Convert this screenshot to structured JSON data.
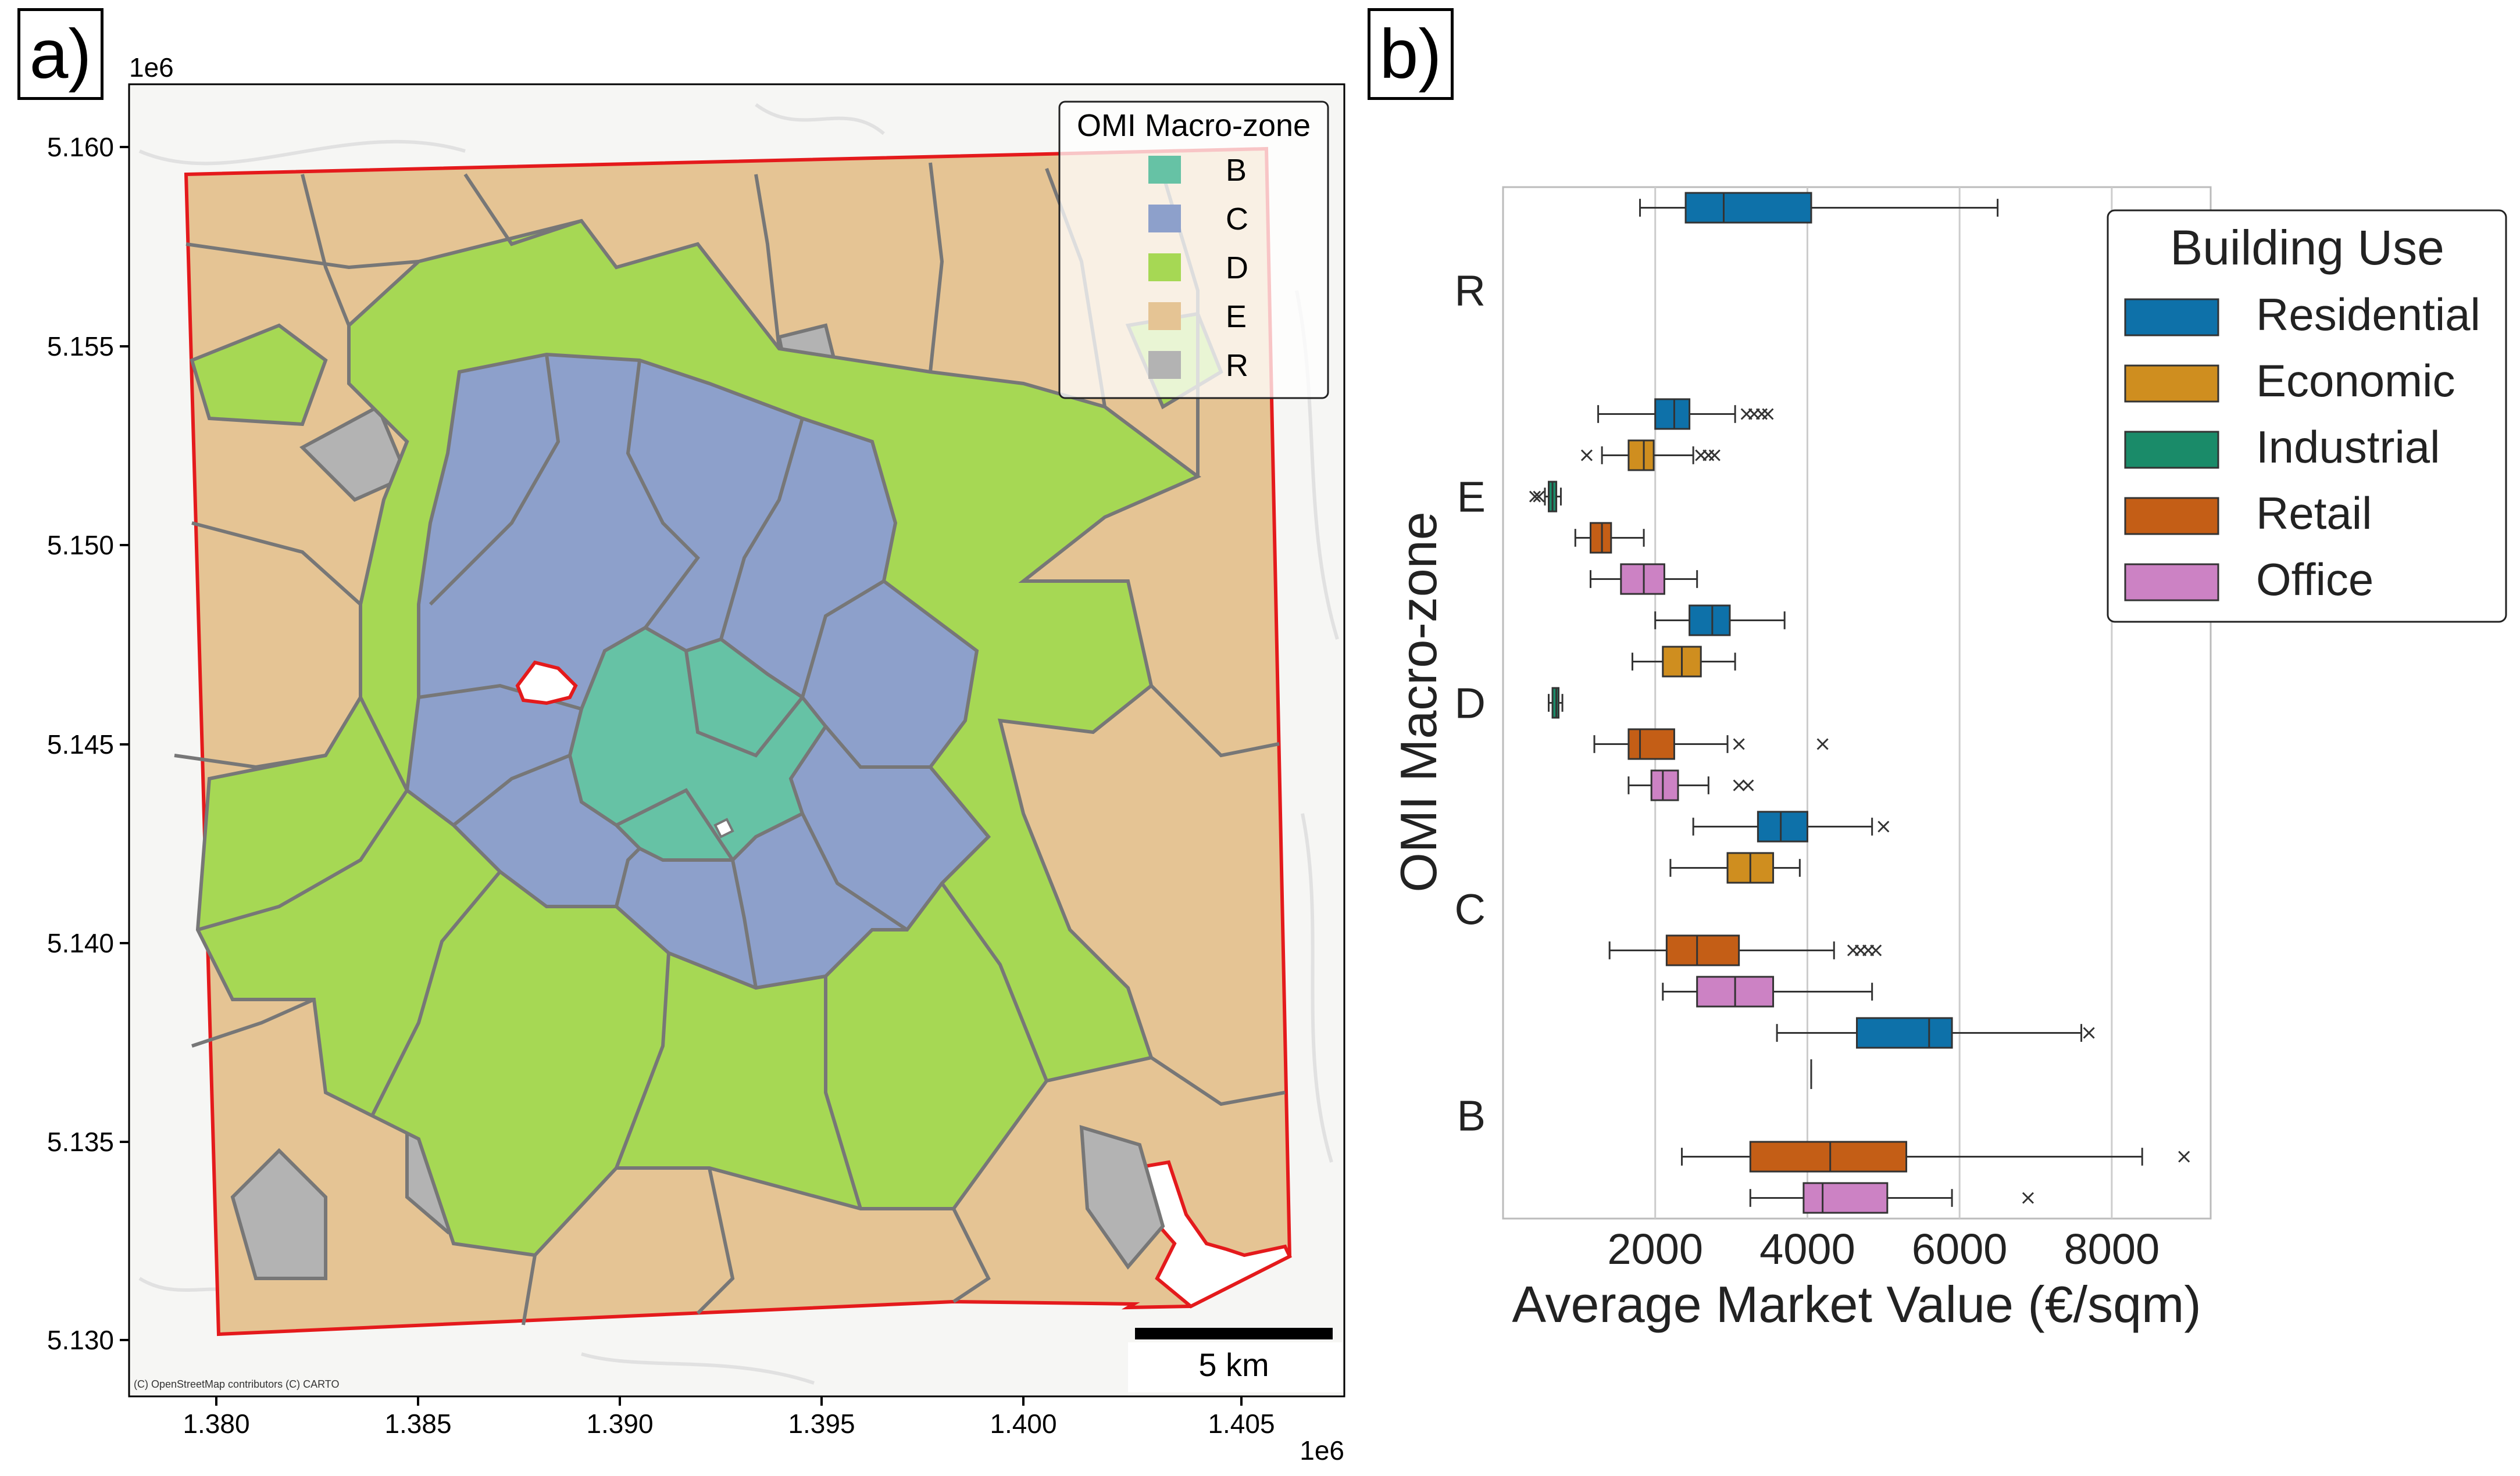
{
  "panels": {
    "a_label": "a)",
    "b_label": "b)"
  },
  "map": {
    "x_ticks": [
      "1.380",
      "1.385",
      "1.390",
      "1.395",
      "1.400",
      "1.405"
    ],
    "y_ticks": [
      "5.160",
      "5.155",
      "5.150",
      "5.145",
      "5.140",
      "5.135",
      "5.130"
    ],
    "x_offset": "1e6",
    "y_offset": "1e6",
    "attribution": "(C) OpenStreetMap contributors (C) CARTO",
    "scalebar_label": "5 km",
    "legend": {
      "title": "OMI Macro-zone",
      "entries": [
        {
          "label": "B",
          "color": "#66c2a5"
        },
        {
          "label": "C",
          "color": "#8da0cb"
        },
        {
          "label": "D",
          "color": "#a6d854"
        },
        {
          "label": "E",
          "color": "#e5c494"
        },
        {
          "label": "R",
          "color": "#b3b3b3"
        }
      ]
    },
    "boundary_color": "#e41a1c",
    "zone_border_color": "#777777"
  },
  "chart_data": {
    "type": "boxplot",
    "orientation": "horizontal",
    "xlabel": "Average Market Value (€/sqm)",
    "ylabel": "OMI Macro-zone",
    "xlim": [
      0,
      9300
    ],
    "x_ticks": [
      2000,
      4000,
      6000,
      8000
    ],
    "grid": "vertical",
    "categories": [
      "R",
      "E",
      "D",
      "C",
      "B"
    ],
    "legend": {
      "title": "Building Use",
      "placement": "right",
      "entries": [
        {
          "label": "Residential",
          "color": "#0e71a9"
        },
        {
          "label": "Economic",
          "color": "#cf8e1f"
        },
        {
          "label": "Industrial",
          "color": "#1a8b69"
        },
        {
          "label": "Retail",
          "color": "#c45e16"
        },
        {
          "label": "Office",
          "color": "#cc82c4"
        }
      ]
    },
    "boxes": [
      {
        "zone": "R",
        "use": "Residential",
        "whislo": 1800,
        "q1": 2400,
        "med": 2900,
        "q3": 4050,
        "whishi": 6500,
        "fliers": []
      },
      {
        "zone": "E",
        "use": "Residential",
        "whislo": 1250,
        "q1": 2000,
        "med": 2250,
        "q3": 2450,
        "whishi": 3050,
        "fliers": [
          3200,
          3300,
          3400,
          3480
        ]
      },
      {
        "zone": "E",
        "use": "Economic",
        "whislo": 1300,
        "q1": 1650,
        "med": 1850,
        "q3": 1980,
        "whishi": 2500,
        "fliers": [
          1100,
          2600,
          2700,
          2780
        ]
      },
      {
        "zone": "E",
        "use": "Industrial",
        "whislo": 550,
        "q1": 600,
        "med": 650,
        "q3": 700,
        "whishi": 760,
        "fliers": [
          420,
          470
        ]
      },
      {
        "zone": "E",
        "use": "Retail",
        "whislo": 950,
        "q1": 1150,
        "med": 1300,
        "q3": 1420,
        "whishi": 1850,
        "fliers": []
      },
      {
        "zone": "E",
        "use": "Office",
        "whislo": 1150,
        "q1": 1550,
        "med": 1850,
        "q3": 2120,
        "whishi": 2550,
        "fliers": []
      },
      {
        "zone": "D",
        "use": "Residential",
        "whislo": 2000,
        "q1": 2450,
        "med": 2750,
        "q3": 2980,
        "whishi": 3700,
        "fliers": []
      },
      {
        "zone": "D",
        "use": "Economic",
        "whislo": 1700,
        "q1": 2100,
        "med": 2350,
        "q3": 2600,
        "whishi": 3050,
        "fliers": []
      },
      {
        "zone": "D",
        "use": "Industrial",
        "whislo": 600,
        "q1": 650,
        "med": 700,
        "q3": 730,
        "whishi": 780,
        "fliers": []
      },
      {
        "zone": "D",
        "use": "Retail",
        "whislo": 1200,
        "q1": 1650,
        "med": 1800,
        "q3": 2250,
        "whishi": 2950,
        "fliers": [
          3100,
          4200
        ]
      },
      {
        "zone": "D",
        "use": "Office",
        "whislo": 1650,
        "q1": 1950,
        "med": 2100,
        "q3": 2300,
        "whishi": 2700,
        "fliers": [
          3100,
          3220
        ]
      },
      {
        "zone": "C",
        "use": "Residential",
        "whislo": 2500,
        "q1": 3350,
        "med": 3650,
        "q3": 4000,
        "whishi": 4850,
        "fliers": [
          5000
        ]
      },
      {
        "zone": "C",
        "use": "Economic",
        "whislo": 2200,
        "q1": 2950,
        "med": 3250,
        "q3": 3550,
        "whishi": 3900,
        "fliers": []
      },
      {
        "zone": "C",
        "use": "Retail",
        "whislo": 1400,
        "q1": 2150,
        "med": 2550,
        "q3": 3100,
        "whishi": 4350,
        "fliers": [
          4600,
          4700,
          4800,
          4900
        ]
      },
      {
        "zone": "C",
        "use": "Office",
        "whislo": 2100,
        "q1": 2550,
        "med": 3050,
        "q3": 3550,
        "whishi": 4850,
        "fliers": []
      },
      {
        "zone": "B",
        "use": "Residential",
        "whislo": 3600,
        "q1": 4650,
        "med": 5600,
        "q3": 5900,
        "whishi": 7600,
        "fliers": [
          7700
        ]
      },
      {
        "zone": "B",
        "use": "Economic",
        "whislo": 4050,
        "q1": 4050,
        "med": 4050,
        "q3": 4050,
        "whishi": 4050,
        "fliers": []
      },
      {
        "zone": "B",
        "use": "Retail",
        "whislo": 2350,
        "q1": 3250,
        "med": 4300,
        "q3": 5300,
        "whishi": 8400,
        "fliers": [
          8950
        ]
      },
      {
        "zone": "B",
        "use": "Office",
        "whislo": 3250,
        "q1": 3950,
        "med": 4200,
        "q3": 5050,
        "whishi": 5900,
        "fliers": [
          6900
        ]
      }
    ]
  }
}
